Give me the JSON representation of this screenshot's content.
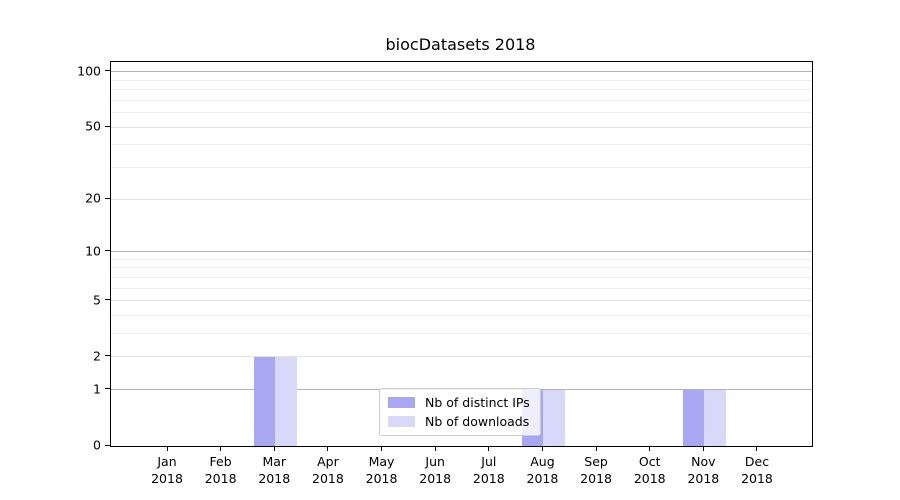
{
  "title": "biocDatasets 2018",
  "chart_data": {
    "type": "bar",
    "title": "biocDatasets 2018",
    "categories": [
      "Jan",
      "Feb",
      "Mar",
      "Apr",
      "May",
      "Jun",
      "Jul",
      "Aug",
      "Sep",
      "Oct",
      "Nov",
      "Dec"
    ],
    "year": "2018",
    "series": [
      {
        "name": "Nb of distinct IPs",
        "color": "#a8a8f2",
        "values": [
          0,
          0,
          2,
          0,
          0,
          0,
          0,
          1,
          0,
          0,
          1,
          0
        ]
      },
      {
        "name": "Nb of downloads",
        "color": "#d8d8f8",
        "values": [
          0,
          0,
          2,
          0,
          0,
          0,
          0,
          1,
          0,
          0,
          1,
          0
        ]
      }
    ],
    "yscale": "log1p",
    "yticks": [
      0,
      1,
      2,
      5,
      10,
      20,
      50,
      100
    ],
    "ylim": [
      0,
      113
    ],
    "grid": true,
    "grid_major_values": [
      1,
      10,
      100
    ],
    "grid_mid_values": [
      2,
      5,
      20,
      50
    ],
    "grid_minor_values": [
      3,
      4,
      6,
      7,
      8,
      9,
      30,
      40,
      60,
      70,
      80,
      90
    ],
    "legend_position": "lower center"
  },
  "colors": {
    "distinct_ips_bar": "#a8a8f2",
    "downloads_bar": "#d8d8f8",
    "grid_major": "#b4b4b4",
    "grid_mid": "#e4e4e4",
    "grid_minor": "#eeeeee"
  }
}
